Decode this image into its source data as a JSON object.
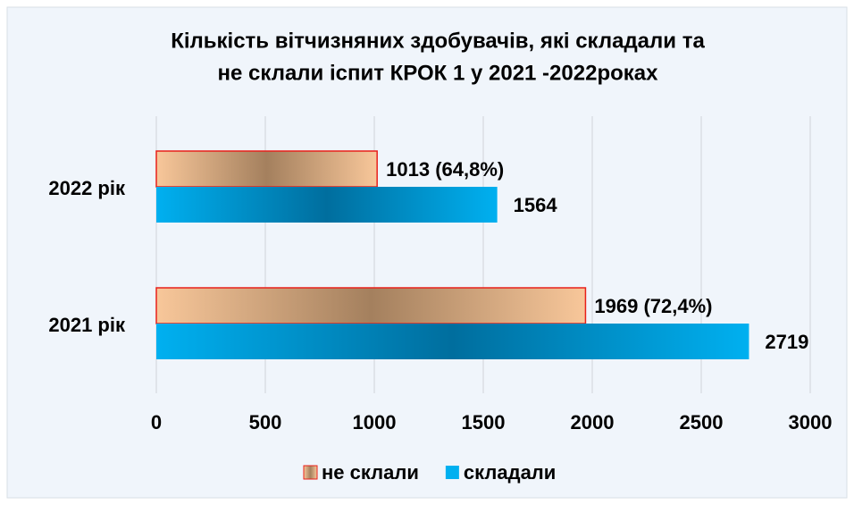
{
  "chart_data": {
    "type": "hbar",
    "title": [
      "Кількість вітчизняних здобувачів, які складали та",
      "не склали іспит КРОК 1 у 2021 -2022роках"
    ],
    "categories": [
      "2022 рік",
      "2021 рік"
    ],
    "series": [
      {
        "name": "не склали",
        "color": "#f8c79a",
        "values": [
          1013,
          1969
        ],
        "value_labels": [
          "1013 (64,8%)",
          "1969 (72,4%)"
        ]
      },
      {
        "name": "складали",
        "color": "#00b0f0",
        "values": [
          1564,
          2719
        ]
      }
    ],
    "xlim": [
      0,
      3000
    ],
    "xticks": [
      0,
      500,
      1000,
      1500,
      2000,
      2500,
      3000
    ],
    "grid": true,
    "legend": "bottom"
  }
}
